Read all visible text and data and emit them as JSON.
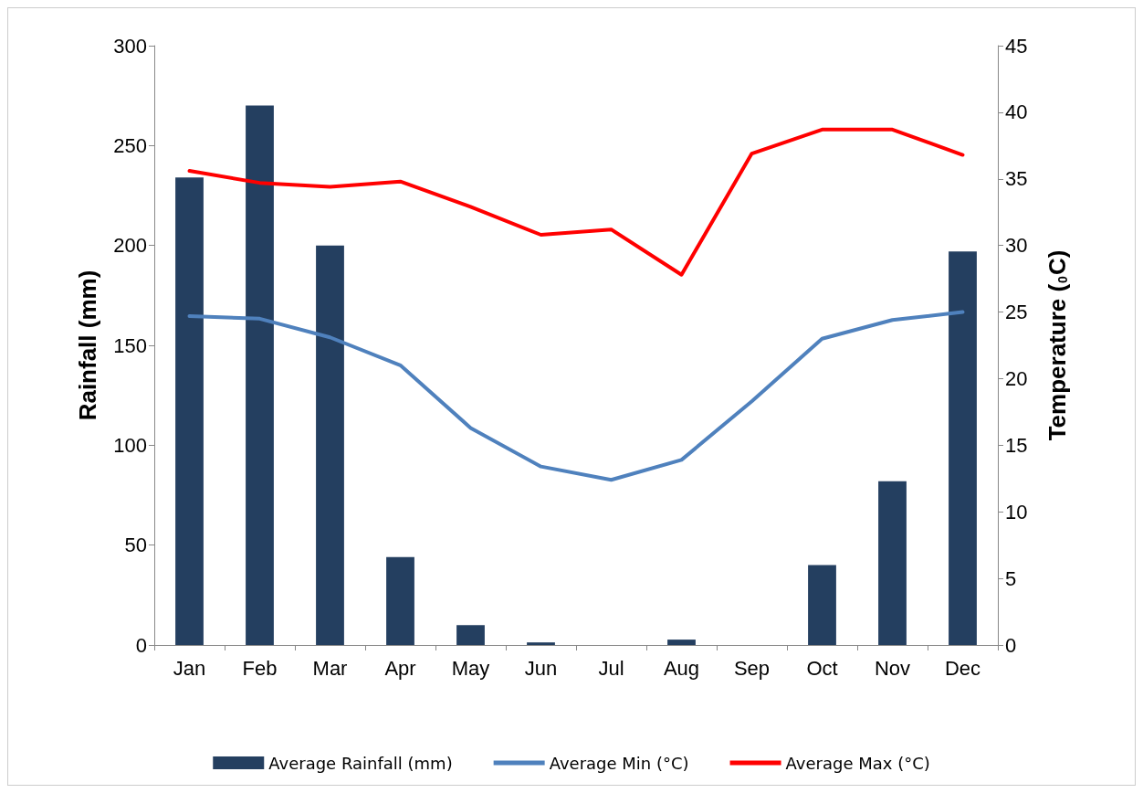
{
  "chart_data": {
    "type": "bar",
    "categories": [
      "Jan",
      "Feb",
      "Mar",
      "Apr",
      "May",
      "Jun",
      "Jul",
      "Aug",
      "Sep",
      "Oct",
      "Nov",
      "Dec"
    ],
    "ylabel": "Rainfall (mm)",
    "y2label": "Temperature ($_{0}$C)",
    "ylim": [
      0,
      300
    ],
    "yticks": [
      0,
      50,
      100,
      150,
      200,
      250,
      300
    ],
    "y2lim": [
      0,
      45
    ],
    "y2ticks": [
      0,
      5,
      10,
      15,
      20,
      25,
      30,
      35,
      40,
      45
    ],
    "grid": false,
    "legend": "bottom",
    "marker": "none",
    "series": [
      {
        "name": "Average Rainfall (mm)",
        "color": "#243f60",
        "values": [
          234,
          270,
          200,
          44,
          10,
          1.3,
          0,
          2.7,
          0,
          40,
          82,
          197
        ]
      },
      {
        "name": "Average Min (°C)",
        "type": "line",
        "axis": "y2",
        "color": "#4f81bd",
        "values": [
          24.7,
          24.5,
          23.1,
          21.0,
          16.3,
          13.4,
          12.4,
          13.9,
          18.3,
          23.0,
          24.4,
          25.0
        ]
      },
      {
        "name": "Average Max (°C)",
        "type": "line",
        "axis": "y2",
        "color": "#ff0000",
        "values": [
          35.6,
          34.7,
          34.4,
          34.8,
          32.9,
          30.8,
          31.2,
          27.8,
          36.9,
          38.7,
          38.7,
          36.8
        ]
      }
    ]
  }
}
